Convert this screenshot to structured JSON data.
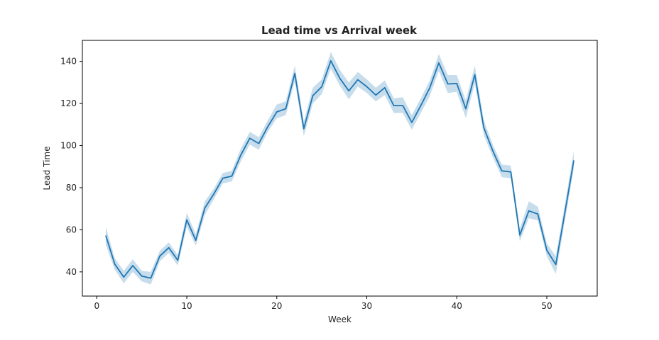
{
  "chart_data": {
    "type": "line",
    "title": "Lead time vs Arrival week",
    "xlabel": "Week",
    "ylabel": "Lead Time",
    "xlim": [
      -1.6,
      55.6
    ],
    "ylim": [
      28.5,
      150.0
    ],
    "xticks": [
      0,
      10,
      20,
      30,
      40,
      50
    ],
    "yticks": [
      40,
      60,
      80,
      100,
      120,
      140
    ],
    "grid": false,
    "legend": "none",
    "colors": {
      "line": "#1f77b4",
      "band": "#1f77b4"
    },
    "series": [
      {
        "x": [
          1,
          2,
          3,
          4,
          5,
          6,
          7,
          8,
          9,
          10,
          11,
          12,
          13,
          14,
          15,
          16,
          17,
          18,
          19,
          20,
          21,
          22,
          23,
          24,
          25,
          26,
          27,
          28,
          29,
          30,
          31,
          32,
          33,
          34,
          35,
          36,
          37,
          38,
          39,
          40,
          41,
          42,
          43,
          44,
          45,
          46,
          47,
          48,
          49,
          50,
          51,
          52,
          53
        ],
        "y": [
          57.3,
          43.7,
          37.5,
          43.0,
          38.0,
          37.0,
          47.5,
          51.5,
          45.5,
          64.7,
          55.0,
          70.3,
          77.0,
          84.5,
          85.5,
          95.5,
          103.5,
          101.0,
          109.0,
          116.0,
          117.5,
          134.3,
          108.0,
          123.7,
          128.0,
          140.3,
          132.0,
          126.0,
          131.3,
          128.0,
          124.0,
          127.5,
          119.0,
          119.0,
          111.0,
          119.0,
          127.5,
          139.3,
          129.3,
          129.5,
          117.5,
          133.7,
          108.5,
          97.5,
          88.0,
          87.5,
          57.5,
          69.0,
          67.5,
          50.3,
          43.5,
          68.0,
          93.0
        ],
        "ci_low": [
          53.0,
          41.0,
          34.5,
          40.0,
          35.5,
          34.0,
          45.0,
          49.0,
          43.0,
          61.5,
          52.5,
          67.0,
          74.5,
          82.0,
          83.0,
          92.5,
          100.5,
          98.0,
          106.5,
          113.0,
          114.5,
          130.5,
          104.5,
          120.0,
          124.5,
          136.5,
          128.5,
          122.0,
          128.0,
          125.0,
          121.0,
          124.0,
          115.5,
          115.5,
          107.5,
          115.5,
          123.5,
          135.5,
          125.0,
          125.5,
          113.0,
          129.5,
          105.0,
          94.5,
          85.0,
          84.5,
          54.5,
          65.5,
          64.5,
          47.5,
          39.0,
          64.0,
          89.0
        ],
        "ci_high": [
          61.5,
          46.5,
          40.5,
          46.0,
          40.5,
          40.0,
          50.0,
          54.0,
          48.0,
          68.0,
          58.0,
          73.5,
          79.5,
          87.0,
          88.0,
          98.5,
          106.5,
          104.0,
          112.0,
          119.5,
          121.0,
          138.0,
          111.5,
          127.5,
          131.5,
          144.5,
          136.0,
          130.0,
          135.0,
          131.5,
          127.5,
          131.0,
          122.5,
          123.0,
          114.5,
          122.5,
          131.0,
          143.5,
          133.5,
          133.5,
          121.5,
          138.0,
          112.0,
          100.5,
          91.0,
          90.5,
          60.5,
          73.5,
          71.0,
          53.5,
          47.5,
          72.0,
          97.5
        ]
      }
    ]
  }
}
